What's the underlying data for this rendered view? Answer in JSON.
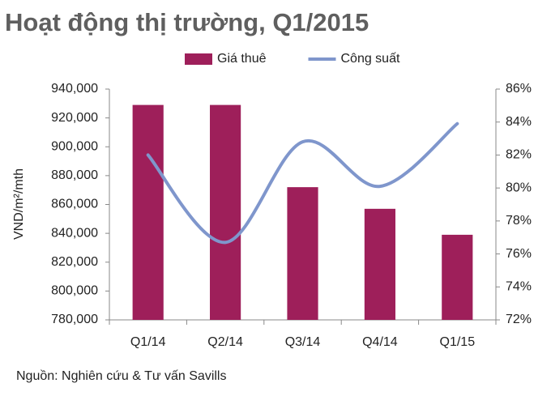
{
  "chart_data": {
    "type": "combo",
    "title": "Hoạt động thị trường, Q1/2015",
    "y_label": "VND/m²/mth",
    "source": "Nguồn: Nghiên cứu & Tư vấn Savills",
    "categories": [
      "Q1/14",
      "Q2/14",
      "Q3/14",
      "Q4/14",
      "Q1/15"
    ],
    "series": [
      {
        "name": "Giá thuê",
        "type": "bar",
        "color": "#9e1f5a",
        "values": [
          929000,
          929000,
          872000,
          857000,
          839000
        ]
      },
      {
        "name": "Công suất",
        "type": "line",
        "axis": "y2",
        "color": "#7f96cc",
        "values": [
          82,
          76.7,
          82.8,
          80.1,
          83.9
        ]
      }
    ],
    "ylim": [
      780000,
      940000
    ],
    "yticks": [
      {
        "value": 780000,
        "label": "780,000"
      },
      {
        "value": 800000,
        "label": "800,000"
      },
      {
        "value": 820000,
        "label": "820,000"
      },
      {
        "value": 840000,
        "label": "840,000"
      },
      {
        "value": 860000,
        "label": "860,000"
      },
      {
        "value": 880000,
        "label": "880,000"
      },
      {
        "value": 900000,
        "label": "900,000"
      },
      {
        "value": 920000,
        "label": "920,000"
      },
      {
        "value": 940000,
        "label": "940,000"
      }
    ],
    "y2lim": [
      72,
      86
    ],
    "y2ticks": [
      {
        "value": 72,
        "label": "72%"
      },
      {
        "value": 74,
        "label": "74%"
      },
      {
        "value": 76,
        "label": "76%"
      },
      {
        "value": 78,
        "label": "78%"
      },
      {
        "value": 80,
        "label": "80%"
      },
      {
        "value": 82,
        "label": "82%"
      },
      {
        "value": 84,
        "label": "84%"
      },
      {
        "value": 86,
        "label": "86%"
      }
    ],
    "grid": false
  }
}
